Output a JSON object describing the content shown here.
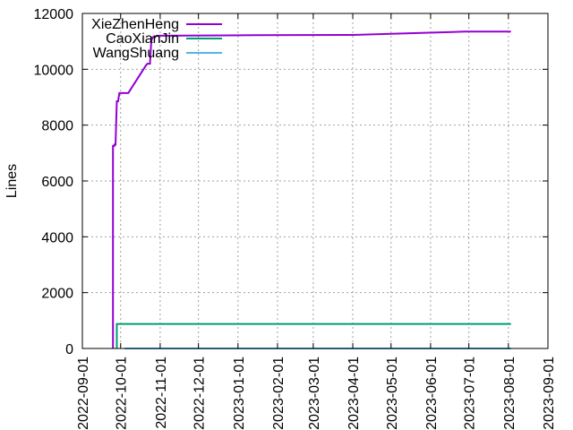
{
  "chart_data": {
    "type": "line",
    "title": "",
    "xlabel": "",
    "ylabel": "Lines",
    "x_axis_type": "date",
    "xlim": [
      "2022-09-01",
      "2023-09-01"
    ],
    "ylim": [
      0,
      12000
    ],
    "grid": true,
    "legend_position": "top-left",
    "x_tick_labels": [
      "2022-09-01",
      "2022-10-01",
      "2022-11-01",
      "2022-12-01",
      "2023-01-01",
      "2023-02-01",
      "2023-03-01",
      "2023-04-01",
      "2023-05-01",
      "2023-06-01",
      "2023-07-01",
      "2023-08-01",
      "2023-09-01"
    ],
    "y_ticks": [
      0,
      2000,
      4000,
      6000,
      8000,
      10000,
      12000
    ],
    "series": [
      {
        "name": "XieZhenHeng",
        "color": "#9400d3",
        "points": [
          [
            "2022-09-25",
            0
          ],
          [
            "2022-09-25",
            7250
          ],
          [
            "2022-09-26",
            7250
          ],
          [
            "2022-09-26",
            7300
          ],
          [
            "2022-09-27",
            7300
          ],
          [
            "2022-09-28",
            8850
          ],
          [
            "2022-09-29",
            8850
          ],
          [
            "2022-09-30",
            9150
          ],
          [
            "2022-10-07",
            9150
          ],
          [
            "2022-10-21",
            10150
          ],
          [
            "2022-10-22",
            10200
          ],
          [
            "2022-10-24",
            10200
          ],
          [
            "2022-10-25",
            11000
          ],
          [
            "2022-10-26",
            11150
          ],
          [
            "2022-10-28",
            11150
          ],
          [
            "2022-10-29",
            11200
          ],
          [
            "2023-01-15",
            11220
          ],
          [
            "2023-04-01",
            11230
          ],
          [
            "2023-06-28",
            11350
          ],
          [
            "2023-08-03",
            11350
          ]
        ]
      },
      {
        "name": "CaoXianJin",
        "color": "#009e73",
        "points": [
          [
            "2022-09-28",
            0
          ],
          [
            "2022-09-28",
            880
          ],
          [
            "2023-08-03",
            880
          ]
        ]
      },
      {
        "name": "WangShuang",
        "color": "#56b4e9",
        "points": [
          [
            "2022-10-04",
            0
          ],
          [
            "2023-08-03",
            0
          ]
        ]
      }
    ]
  }
}
